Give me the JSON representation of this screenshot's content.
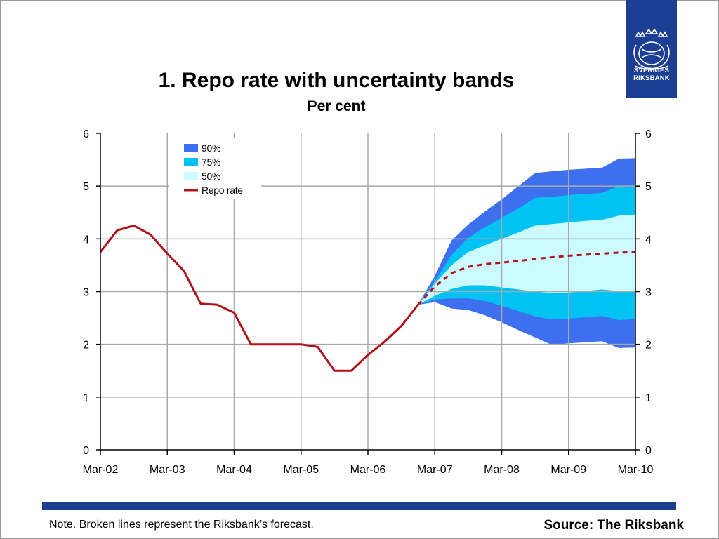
{
  "logo": {
    "line1": "SVERIGES",
    "line2": "RIKSBANK",
    "icon": "riksbank-crest-icon"
  },
  "footer": {
    "note": "Note. Broken lines represent the Riksbank’s forecast.",
    "source": "Source: The Riksbank"
  },
  "colors": {
    "band90": "#3d6fef",
    "band75": "#00c2f3",
    "band50": "#ccfbff",
    "repo": "#b01217",
    "accent": "#1c3f94"
  },
  "chart_data": {
    "type": "line",
    "title": "1. Repo rate with uncertainty bands",
    "subtitle": "Per cent",
    "xlabel": "",
    "ylabel": "",
    "x_tick_labels": [
      "Mar-02",
      "Mar-03",
      "Mar-04",
      "Mar-05",
      "Mar-06",
      "Mar-07",
      "Mar-08",
      "Mar-09",
      "Mar-10"
    ],
    "xlim": [
      "2002-03",
      "2010-03"
    ],
    "ylim": [
      0,
      6
    ],
    "y_ticks": [
      "0",
      "1",
      "2",
      "3",
      "4",
      "5",
      "6"
    ],
    "y_axis_both_sides": true,
    "grid": true,
    "legend": {
      "position": "top-left",
      "entries": [
        {
          "label": "90%",
          "color": "#3d6fef",
          "kind": "patch"
        },
        {
          "label": "75%",
          "color": "#00c2f3",
          "kind": "patch"
        },
        {
          "label": "50%",
          "color": "#ccfbff",
          "kind": "patch"
        },
        {
          "label": "Repo rate",
          "color": "#b01217",
          "kind": "line"
        }
      ]
    },
    "series": [
      {
        "name": "Repo rate",
        "style": "solid",
        "points": [
          [
            "2002-03",
            3.75
          ],
          [
            "2002-06",
            4.16
          ],
          [
            "2002-09",
            4.25
          ],
          [
            "2002-12",
            4.08
          ],
          [
            "2003-03",
            3.72
          ],
          [
            "2003-06",
            3.39
          ],
          [
            "2003-09",
            2.77
          ],
          [
            "2003-12",
            2.75
          ],
          [
            "2004-03",
            2.6
          ],
          [
            "2004-06",
            2.0
          ],
          [
            "2004-09",
            2.0
          ],
          [
            "2004-12",
            2.0
          ],
          [
            "2005-03",
            2.0
          ],
          [
            "2005-06",
            1.95
          ],
          [
            "2005-09",
            1.5
          ],
          [
            "2005-12",
            1.5
          ],
          [
            "2006-03",
            1.8
          ],
          [
            "2006-06",
            2.05
          ],
          [
            "2006-09",
            2.35
          ],
          [
            "2006-12",
            2.75
          ]
        ]
      },
      {
        "name": "Repo rate forecast",
        "style": "dashed",
        "points": [
          [
            "2006-12",
            2.75
          ],
          [
            "2007-03",
            3.1
          ],
          [
            "2007-06",
            3.35
          ],
          [
            "2007-09",
            3.47
          ],
          [
            "2007-12",
            3.52
          ],
          [
            "2008-03",
            3.55
          ],
          [
            "2008-06",
            3.58
          ],
          [
            "2008-09",
            3.62
          ],
          [
            "2008-12",
            3.65
          ],
          [
            "2009-03",
            3.68
          ],
          [
            "2009-06",
            3.7
          ],
          [
            "2009-09",
            3.72
          ],
          [
            "2009-12",
            3.74
          ],
          [
            "2010-03",
            3.75
          ]
        ]
      }
    ],
    "bands": {
      "x": [
        "2006-12",
        "2007-03",
        "2007-06",
        "2007-09",
        "2007-12",
        "2008-03",
        "2008-06",
        "2008-09",
        "2008-12",
        "2009-03",
        "2009-06",
        "2009-09",
        "2009-12",
        "2010-03"
      ],
      "90": {
        "upper": [
          2.75,
          3.3,
          3.97,
          4.27,
          4.52,
          4.75,
          5.0,
          5.25,
          5.28,
          5.31,
          5.33,
          5.35,
          5.52,
          5.53
        ],
        "lower": [
          2.75,
          2.8,
          2.68,
          2.65,
          2.55,
          2.42,
          2.27,
          2.13,
          1.99,
          2.02,
          2.04,
          2.06,
          1.93,
          1.94
        ]
      },
      "75": {
        "upper": [
          2.75,
          3.2,
          3.7,
          4.02,
          4.22,
          4.4,
          4.58,
          4.78,
          4.8,
          4.83,
          4.85,
          4.87,
          5.0,
          5.02
        ],
        "lower": [
          2.75,
          2.85,
          2.87,
          2.87,
          2.82,
          2.73,
          2.63,
          2.53,
          2.47,
          2.49,
          2.51,
          2.54,
          2.46,
          2.48
        ]
      },
      "50": {
        "upper": [
          2.75,
          3.15,
          3.5,
          3.75,
          3.88,
          4.0,
          4.12,
          4.25,
          4.28,
          4.31,
          4.34,
          4.36,
          4.44,
          4.46
        ],
        "lower": [
          2.75,
          2.92,
          3.05,
          3.12,
          3.12,
          3.08,
          3.04,
          3.0,
          2.97,
          2.98,
          3.01,
          3.04,
          3.01,
          3.02
        ]
      }
    }
  }
}
